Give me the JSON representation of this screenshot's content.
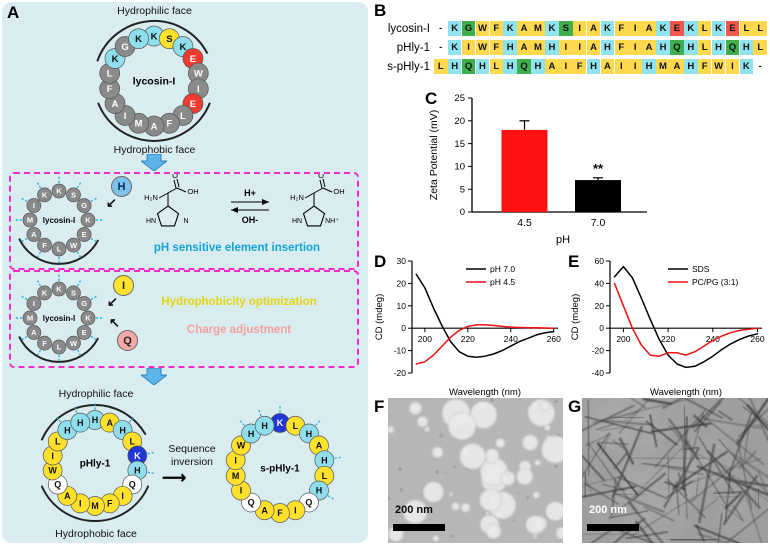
{
  "panel_labels": {
    "a": "A",
    "b": "B",
    "c": "C",
    "d": "D",
    "e": "E",
    "f": "F",
    "g": "G"
  },
  "icons": {
    "arrow_sw": "↙",
    "arrow_nw": "↖",
    "arrow_right": "⟶"
  },
  "colors": {
    "panel_a_bg": "#d9edf0",
    "box_border": "#f02dc8",
    "caption_blue": "#14a3d6",
    "caption_yellow": "#e5d50c",
    "caption_pink": "#f2a0a0",
    "arrow_blue": "#5db4e6",
    "residue": {
      "g": [
        "#8a8a8a",
        "#ffffff"
      ],
      "c": [
        "#8edeed",
        "#111111"
      ],
      "y": [
        "#ffe12b",
        "#111111"
      ],
      "r": [
        "#ee3b2f",
        "#ffffff"
      ],
      "b": [
        "#2236d6",
        "#ffffff"
      ],
      "w": [
        "#ffffff",
        "#111111"
      ]
    },
    "alignment": {
      "c": "#8fe3ef",
      "y": "#ffd94d",
      "g": "#3fae4c",
      "r": "#f2564a",
      "n": "transparent"
    }
  },
  "panel_a": {
    "top_hydrophilic": "Hydrophilic face",
    "top_hydrophobic": "Hydrophobic face",
    "bottom_hydrophilic": "Hydrophilic face",
    "bottom_hydrophobic": "Hydrophobic face",
    "sequence_inversion": "Sequence inversion",
    "box1_caption": "pH sensitive element insertion",
    "box2_caption_1": "Hydrophobicity optimization",
    "box2_caption_2": "Charge adjustment",
    "inserted": {
      "h": "H",
      "i": "I",
      "q": "Q"
    },
    "chem": {
      "amine": "H₂N",
      "oxygen": "O",
      "hydroxyl": "OH",
      "ring_left": "HN",
      "ring_right_neutral": "N",
      "ring_right_protonated": "NH⁺",
      "forward": "H+",
      "reverse": "OH-"
    },
    "wheels": {
      "top": {
        "label": "lycosin-I",
        "residues": [
          [
            "K",
            "c"
          ],
          [
            "S",
            "y"
          ],
          [
            "K",
            "c"
          ],
          [
            "E",
            "r"
          ],
          [
            "W",
            "g"
          ],
          [
            "I",
            "g"
          ],
          [
            "E",
            "r"
          ],
          [
            "L",
            "g"
          ],
          [
            "F",
            "g"
          ],
          [
            "A",
            "g"
          ],
          [
            "M",
            "g"
          ],
          [
            "I",
            "g"
          ],
          [
            "A",
            "g"
          ],
          [
            "F",
            "g"
          ],
          [
            "L",
            "g"
          ],
          [
            "K",
            "c"
          ],
          [
            "G",
            "g"
          ],
          [
            "K",
            "c"
          ]
        ]
      },
      "mid1": {
        "label": "lycosin-I",
        "residues": [
          [
            "K",
            "g"
          ],
          [
            "S",
            "g"
          ],
          [
            "G",
            "g"
          ],
          [
            "K",
            "g"
          ],
          [
            "E",
            "g"
          ],
          [
            "W",
            "g"
          ],
          [
            "L",
            "g"
          ],
          [
            "F",
            "g"
          ],
          [
            "A",
            "g"
          ],
          [
            "M",
            "g"
          ],
          [
            "I",
            "g"
          ],
          [
            "K",
            "g"
          ]
        ]
      },
      "mid2": {
        "label": "lycosin-I",
        "residues": [
          [
            "K",
            "g"
          ],
          [
            "S",
            "g"
          ],
          [
            "G",
            "g"
          ],
          [
            "K",
            "g"
          ],
          [
            "E",
            "g"
          ],
          [
            "W",
            "g"
          ],
          [
            "L",
            "g"
          ],
          [
            "F",
            "g"
          ],
          [
            "A",
            "g"
          ],
          [
            "M",
            "g"
          ],
          [
            "I",
            "g"
          ],
          [
            "K",
            "g"
          ]
        ]
      },
      "phly": {
        "label": "pHly-1",
        "residues": [
          [
            "H",
            "c"
          ],
          [
            "A",
            "y"
          ],
          [
            "H",
            "c"
          ],
          [
            "L",
            "y"
          ],
          [
            "K",
            "b"
          ],
          [
            "H",
            "c"
          ],
          [
            "Q",
            "w"
          ],
          [
            "I",
            "y"
          ],
          [
            "F",
            "y"
          ],
          [
            "M",
            "y"
          ],
          [
            "I",
            "y"
          ],
          [
            "A",
            "y"
          ],
          [
            "Q",
            "w"
          ],
          [
            "W",
            "y"
          ],
          [
            "I",
            "y"
          ],
          [
            "L",
            "y"
          ],
          [
            "H",
            "c"
          ],
          [
            "H",
            "c"
          ]
        ]
      },
      "sphly": {
        "label": "s-pHly-1",
        "residues": [
          [
            "K",
            "b"
          ],
          [
            "L",
            "y"
          ],
          [
            "H",
            "c"
          ],
          [
            "A",
            "y"
          ],
          [
            "H",
            "c"
          ],
          [
            "L",
            "y"
          ],
          [
            "H",
            "c"
          ],
          [
            "Q",
            "w"
          ],
          [
            "I",
            "y"
          ],
          [
            "F",
            "y"
          ],
          [
            "A",
            "y"
          ],
          [
            "Q",
            "w"
          ],
          [
            "I",
            "y"
          ],
          [
            "M",
            "y"
          ],
          [
            "I",
            "y"
          ],
          [
            "W",
            "y"
          ],
          [
            "H",
            "c"
          ],
          [
            "H",
            "c"
          ]
        ]
      }
    }
  },
  "alignment": {
    "rows": [
      {
        "name": "lycosin-I",
        "seq": "-KGWFKAMKSIAKFIAKEKLKELL"
      },
      {
        "name": "pHly-1",
        "seq": "-KIWFHAMHIIAHFIAHQHLHQHL"
      },
      {
        "name": "s-pHly-1",
        "seq": "LHQHLHQHAIFHAIIHMAHFWIK-"
      }
    ]
  },
  "chart_data": [
    {
      "id": "C",
      "type": "bar",
      "categories": [
        "4.5",
        "7.0"
      ],
      "values": [
        18,
        7
      ],
      "errors": [
        2,
        0.5
      ],
      "bar_colors": [
        "#ff1111",
        "#000000"
      ],
      "ylabel": "Zeta Potential (mV)",
      "xlabel": "pH",
      "ylim": [
        0,
        25
      ],
      "yticks": [
        0,
        5,
        10,
        15,
        20,
        25
      ],
      "annotations": [
        {
          "text": "**",
          "category_index": 1
        }
      ]
    },
    {
      "id": "D",
      "type": "line",
      "xlabel": "Wavelength (nm)",
      "ylabel": "CD (mdeg)",
      "xlim": [
        194,
        262
      ],
      "ylim": [
        -20,
        30
      ],
      "xticks": [
        200,
        220,
        240,
        260
      ],
      "yticks": [
        -20,
        -10,
        0,
        10,
        20,
        30
      ],
      "legend_position": "top-right",
      "series": [
        {
          "name": "pH 7.0",
          "color": "#000000",
          "x": [
            196,
            200,
            204,
            208,
            212,
            216,
            220,
            224,
            228,
            232,
            236,
            240,
            244,
            248,
            252,
            256,
            260
          ],
          "y": [
            24,
            18,
            9,
            1,
            -6,
            -10.5,
            -12.5,
            -13,
            -12.5,
            -11.5,
            -10,
            -8,
            -6,
            -4.5,
            -3,
            -2,
            -1.5
          ]
        },
        {
          "name": "pH 4.5",
          "color": "#ee1111",
          "x": [
            196,
            200,
            204,
            208,
            212,
            216,
            220,
            224,
            228,
            232,
            236,
            240,
            244,
            248,
            252,
            256,
            260
          ],
          "y": [
            -16,
            -15,
            -12,
            -8,
            -4,
            -1,
            0.8,
            1.5,
            1.5,
            1.2,
            0.8,
            0.5,
            0.3,
            0.2,
            0.2,
            0.1,
            0
          ]
        }
      ]
    },
    {
      "id": "E",
      "type": "line",
      "xlabel": "Wavelength (nm)",
      "ylabel": "CD (mdeg)",
      "xlim": [
        194,
        262
      ],
      "ylim": [
        -40,
        60
      ],
      "xticks": [
        200,
        220,
        240,
        260
      ],
      "yticks": [
        -40,
        -20,
        0,
        20,
        40,
        60
      ],
      "legend_position": "top-right",
      "series": [
        {
          "name": "SDS",
          "color": "#000000",
          "x": [
            196,
            200,
            204,
            208,
            212,
            216,
            220,
            224,
            228,
            232,
            236,
            240,
            244,
            248,
            252,
            256,
            260
          ],
          "y": [
            46,
            55,
            45,
            27,
            8,
            -10,
            -24,
            -32,
            -35,
            -34,
            -30,
            -25,
            -19,
            -14,
            -10,
            -7,
            -5
          ]
        },
        {
          "name": "PC/PG (3:1)",
          "color": "#ee1111",
          "x": [
            196,
            200,
            204,
            208,
            212,
            216,
            220,
            224,
            228,
            232,
            236,
            240,
            244,
            248,
            252,
            256,
            260
          ],
          "y": [
            40,
            20,
            0,
            -15,
            -24,
            -25,
            -22,
            -22,
            -24,
            -21,
            -16,
            -11,
            -7,
            -4,
            -2,
            -1,
            0
          ]
        }
      ]
    }
  ],
  "scale_bars": {
    "f": "200 nm",
    "g": "200 nm"
  }
}
